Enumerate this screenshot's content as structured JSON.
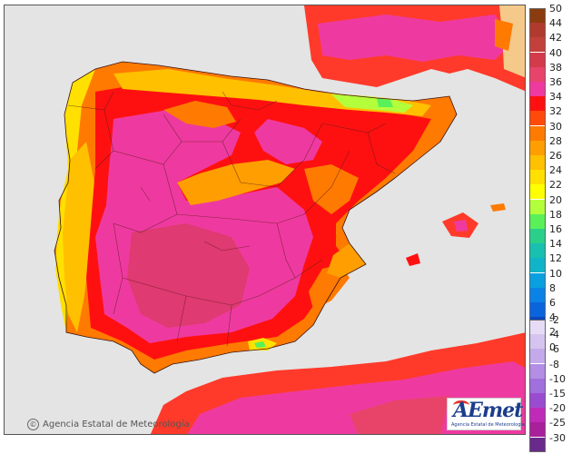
{
  "map": {
    "credit": "Agencia Estatal de Meteorología",
    "logo": {
      "wordmark": "AEmet",
      "subtitle": "Agencia Estatal de Meteorología"
    },
    "region": "Iberian Peninsula and Balearic Islands",
    "colors": {
      "sea": "#e4e4e4",
      "land_outside": "#f2d9a6"
    }
  },
  "legend": {
    "positive": [
      {
        "label": "50",
        "color": "#8a3c0e"
      },
      {
        "label": "44",
        "color": "#b03a2e"
      },
      {
        "label": "42",
        "color": "#c4403a"
      },
      {
        "label": "40",
        "color": "#d33a4a"
      },
      {
        "label": "38",
        "color": "#e8446a"
      },
      {
        "label": "36",
        "color": "#ee3aa0"
      },
      {
        "label": "34",
        "color": "#ff1010"
      },
      {
        "label": "32",
        "color": "#ff4a0a"
      },
      {
        "label": "30",
        "color": "#ff7a00"
      },
      {
        "label": "28",
        "color": "#ff9e00"
      },
      {
        "label": "26",
        "color": "#ffc000"
      },
      {
        "label": "24",
        "color": "#ffe000"
      },
      {
        "label": "22",
        "color": "#ffff00"
      },
      {
        "label": "20",
        "color": "#b4ff3c"
      },
      {
        "label": "18",
        "color": "#5af05a"
      },
      {
        "label": "16",
        "color": "#2ad08a"
      },
      {
        "label": "14",
        "color": "#18c0b0"
      },
      {
        "label": "12",
        "color": "#10b4c8"
      },
      {
        "label": "10",
        "color": "#0aa0e0"
      },
      {
        "label": "8",
        "color": "#0a82e6"
      },
      {
        "label": "6",
        "color": "#0a64dc"
      },
      {
        "label": "4",
        "color": "#0a46c0"
      },
      {
        "label": "2",
        "color": "#0a2ca0"
      },
      {
        "label": "0",
        "color": "#0a1a78"
      }
    ],
    "negative": [
      {
        "label": "-2",
        "color": "#e6dcf5"
      },
      {
        "label": "-4",
        "color": "#d6c4f0"
      },
      {
        "label": "-6",
        "color": "#c4aaea"
      },
      {
        "label": "-8",
        "color": "#b28ee4"
      },
      {
        "label": "-10",
        "color": "#a070dc"
      },
      {
        "label": "-15",
        "color": "#9a4cd0"
      },
      {
        "label": "-20",
        "color": "#c02ab8"
      },
      {
        "label": "-25",
        "color": "#a8209a"
      },
      {
        "label": "-30",
        "color": "#6a2a8c"
      }
    ]
  }
}
